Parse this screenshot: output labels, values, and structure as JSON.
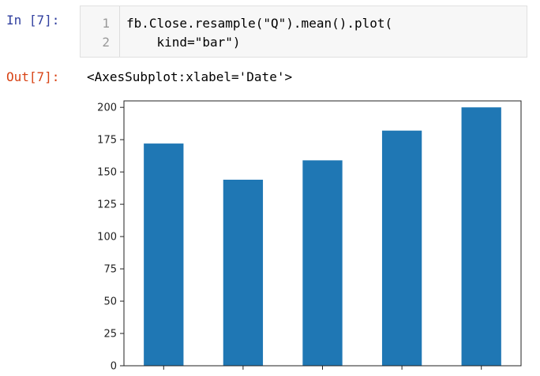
{
  "input_cell": {
    "prompt": "In [7]:",
    "line_numbers": [
      "1",
      "2"
    ],
    "code_lines": [
      "fb.Close.resample(\"Q\").mean().plot(",
      "    kind=\"bar\")"
    ]
  },
  "output_cell": {
    "prompt": "Out[7]:",
    "text": "<AxesSubplot:xlabel='Date'>"
  },
  "colors": {
    "bar": "#1f77b4"
  },
  "chart_data": {
    "type": "bar",
    "categories": [
      "",
      "",
      "",
      "",
      ""
    ],
    "values": [
      172,
      144,
      159,
      182,
      200
    ],
    "ylim": [
      0,
      205
    ],
    "yticks": [
      0,
      25,
      50,
      75,
      100,
      125,
      150,
      175,
      200
    ],
    "grid": false,
    "legend": "none"
  }
}
